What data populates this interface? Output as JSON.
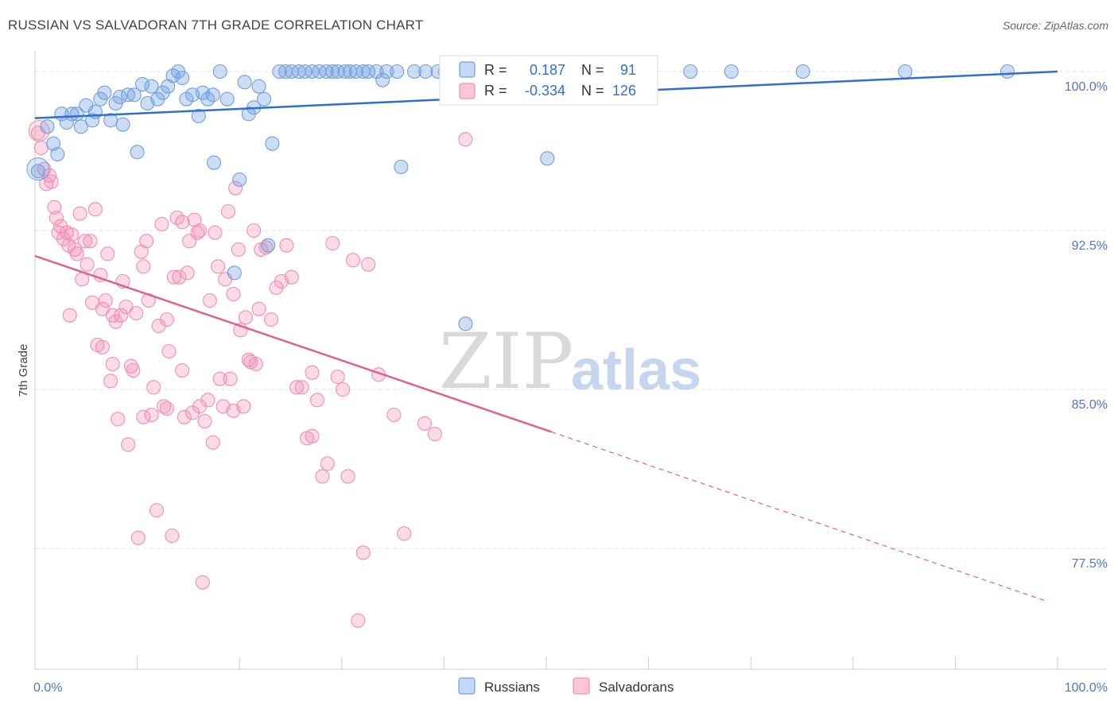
{
  "title": "RUSSIAN VS SALVADORAN 7TH GRADE CORRELATION CHART",
  "source": "Source: ZipAtlas.com",
  "watermark": {
    "zip": "ZIP",
    "atlas": "atlas"
  },
  "colors": {
    "russians": "#6f9fe0",
    "russians_line": "#2e6fd0",
    "salvadorans": "#f08fb3",
    "salvadorans_line": "#e0608f",
    "accent_text": "#2e6fd0",
    "grid": "#e4e4e4"
  },
  "legend": {
    "rows": [
      {
        "r_label": "R =",
        "r_value": "0.187",
        "n_label": "N =",
        "n_value": "91"
      },
      {
        "r_label": "R =",
        "r_value": "-0.334",
        "n_label": "N =",
        "n_value": "126"
      }
    ]
  },
  "chart_data": {
    "type": "scatter",
    "title": "RUSSIAN VS SALVADORAN 7TH GRADE CORRELATION CHART",
    "xlabel": "",
    "ylabel": "7th Grade",
    "xlim": [
      0,
      100
    ],
    "ylim": [
      71.8,
      100.9
    ],
    "x_tick_labels": [
      {
        "x": 0,
        "label": "0.0%"
      },
      {
        "x": 100,
        "label": "100.0%"
      }
    ],
    "y_ticks": [
      {
        "y": 77.5,
        "label": "77.5%"
      },
      {
        "y": 85.0,
        "label": "85.0%"
      },
      {
        "y": 92.5,
        "label": "92.5%"
      },
      {
        "y": 100.0,
        "label": "100.0%"
      }
    ],
    "grid": true,
    "legend_position": "top-center",
    "series": [
      {
        "name": "Russians",
        "r": 0.187,
        "n": 91,
        "trend": {
          "x": [
            0,
            100
          ],
          "y": [
            97.8,
            100.0
          ]
        },
        "points": [
          [
            0.3,
            95.3
          ],
          [
            1.2,
            97.4
          ],
          [
            1.8,
            96.6
          ],
          [
            2.2,
            96.1
          ],
          [
            2.6,
            98.0
          ],
          [
            3.1,
            97.6
          ],
          [
            3.6,
            98.0
          ],
          [
            4.1,
            98.0
          ],
          [
            4.5,
            97.4
          ],
          [
            5.0,
            98.4
          ],
          [
            5.6,
            97.7
          ],
          [
            5.9,
            98.1
          ],
          [
            6.4,
            98.7
          ],
          [
            6.8,
            99.0
          ],
          [
            7.4,
            97.7
          ],
          [
            7.9,
            98.5
          ],
          [
            8.3,
            98.8
          ],
          [
            8.6,
            97.5
          ],
          [
            9.1,
            98.9
          ],
          [
            9.7,
            98.9
          ],
          [
            10.0,
            96.2
          ],
          [
            10.5,
            99.4
          ],
          [
            11.0,
            98.5
          ],
          [
            11.4,
            99.3
          ],
          [
            12.0,
            98.7
          ],
          [
            12.5,
            99.0
          ],
          [
            13.0,
            99.3
          ],
          [
            13.5,
            99.8
          ],
          [
            14.0,
            100.0
          ],
          [
            14.4,
            99.7
          ],
          [
            14.8,
            98.7
          ],
          [
            15.4,
            98.9
          ],
          [
            16.0,
            97.9
          ],
          [
            16.4,
            99.0
          ],
          [
            16.9,
            98.7
          ],
          [
            17.4,
            98.9
          ],
          [
            17.5,
            95.7
          ],
          [
            18.1,
            100.0
          ],
          [
            18.8,
            98.7
          ],
          [
            19.5,
            90.5
          ],
          [
            20.0,
            94.9
          ],
          [
            20.5,
            99.5
          ],
          [
            20.9,
            98.0
          ],
          [
            21.4,
            98.3
          ],
          [
            21.9,
            99.3
          ],
          [
            22.4,
            98.7
          ],
          [
            22.8,
            91.8
          ],
          [
            23.2,
            96.6
          ],
          [
            23.9,
            100.0
          ],
          [
            24.5,
            100.0
          ],
          [
            25.1,
            100.0
          ],
          [
            25.8,
            100.0
          ],
          [
            26.4,
            100.0
          ],
          [
            27.1,
            100.0
          ],
          [
            27.8,
            100.0
          ],
          [
            28.5,
            100.0
          ],
          [
            29.1,
            100.0
          ],
          [
            29.6,
            100.0
          ],
          [
            30.3,
            100.0
          ],
          [
            30.8,
            100.0
          ],
          [
            31.4,
            100.0
          ],
          [
            32.1,
            100.0
          ],
          [
            32.6,
            100.0
          ],
          [
            33.4,
            100.0
          ],
          [
            34.0,
            99.6
          ],
          [
            34.4,
            100.0
          ],
          [
            35.4,
            100.0
          ],
          [
            35.8,
            95.5
          ],
          [
            37.1,
            100.0
          ],
          [
            38.2,
            100.0
          ],
          [
            39.4,
            100.0
          ],
          [
            40.5,
            100.0
          ],
          [
            41.6,
            100.0
          ],
          [
            42.1,
            88.1
          ],
          [
            43.4,
            100.0
          ],
          [
            44.1,
            100.0
          ],
          [
            45.6,
            100.0
          ],
          [
            46.1,
            100.0
          ],
          [
            47.6,
            100.0
          ],
          [
            49.6,
            100.0
          ],
          [
            50.1,
            95.9
          ],
          [
            51.3,
            100.0
          ],
          [
            53.1,
            100.0
          ],
          [
            55.6,
            100.0
          ],
          [
            57.6,
            100.0
          ],
          [
            60.1,
            100.0
          ],
          [
            64.1,
            100.0
          ],
          [
            68.1,
            100.0
          ],
          [
            75.1,
            100.0
          ],
          [
            85.1,
            100.0
          ],
          [
            95.1,
            100.0
          ]
        ]
      },
      {
        "name": "Salvadorans",
        "r": -0.334,
        "n": 126,
        "trend": {
          "x": [
            0,
            50.5
          ],
          "y": [
            91.3,
            83.0
          ],
          "dashed_to": {
            "x": 99,
            "y": 75.0
          }
        },
        "points": [
          [
            0.3,
            97.1
          ],
          [
            0.6,
            96.4
          ],
          [
            0.9,
            95.4
          ],
          [
            1.1,
            94.7
          ],
          [
            1.4,
            95.1
          ],
          [
            1.6,
            94.8
          ],
          [
            1.9,
            93.6
          ],
          [
            2.1,
            93.1
          ],
          [
            2.3,
            92.4
          ],
          [
            2.5,
            92.7
          ],
          [
            2.8,
            92.1
          ],
          [
            3.1,
            92.4
          ],
          [
            3.3,
            91.8
          ],
          [
            3.6,
            92.3
          ],
          [
            3.9,
            91.6
          ],
          [
            4.1,
            91.4
          ],
          [
            4.4,
            93.3
          ],
          [
            4.6,
            90.2
          ],
          [
            4.9,
            92.0
          ],
          [
            5.1,
            90.9
          ],
          [
            5.4,
            92.0
          ],
          [
            5.6,
            89.1
          ],
          [
            5.9,
            93.5
          ],
          [
            6.1,
            87.1
          ],
          [
            6.4,
            90.4
          ],
          [
            6.6,
            88.8
          ],
          [
            6.9,
            89.2
          ],
          [
            7.1,
            91.4
          ],
          [
            7.4,
            85.4
          ],
          [
            7.6,
            88.5
          ],
          [
            7.9,
            88.2
          ],
          [
            8.1,
            83.6
          ],
          [
            8.4,
            88.5
          ],
          [
            8.6,
            90.1
          ],
          [
            8.9,
            88.9
          ],
          [
            9.1,
            82.4
          ],
          [
            9.4,
            86.1
          ],
          [
            9.6,
            85.9
          ],
          [
            9.9,
            88.6
          ],
          [
            10.1,
            78.0
          ],
          [
            10.4,
            91.5
          ],
          [
            10.6,
            90.8
          ],
          [
            10.9,
            92.0
          ],
          [
            11.1,
            89.2
          ],
          [
            11.4,
            83.8
          ],
          [
            11.6,
            85.1
          ],
          [
            11.9,
            79.3
          ],
          [
            12.1,
            88.0
          ],
          [
            12.4,
            92.8
          ],
          [
            12.6,
            84.2
          ],
          [
            12.9,
            88.3
          ],
          [
            13.1,
            86.8
          ],
          [
            13.4,
            78.1
          ],
          [
            13.6,
            90.3
          ],
          [
            13.9,
            93.1
          ],
          [
            14.1,
            90.3
          ],
          [
            14.4,
            92.9
          ],
          [
            14.6,
            83.7
          ],
          [
            14.9,
            90.5
          ],
          [
            15.1,
            92.0
          ],
          [
            15.4,
            83.9
          ],
          [
            15.6,
            93.0
          ],
          [
            15.9,
            92.4
          ],
          [
            16.1,
            92.5
          ],
          [
            16.4,
            75.9
          ],
          [
            16.6,
            83.5
          ],
          [
            16.9,
            84.5
          ],
          [
            17.1,
            89.2
          ],
          [
            17.4,
            82.5
          ],
          [
            17.6,
            92.4
          ],
          [
            17.9,
            90.8
          ],
          [
            18.1,
            85.5
          ],
          [
            18.4,
            84.2
          ],
          [
            18.6,
            90.2
          ],
          [
            18.9,
            93.4
          ],
          [
            19.1,
            85.5
          ],
          [
            19.4,
            89.5
          ],
          [
            19.6,
            94.5
          ],
          [
            19.9,
            91.6
          ],
          [
            20.1,
            87.8
          ],
          [
            20.4,
            84.2
          ],
          [
            20.6,
            88.4
          ],
          [
            20.9,
            86.4
          ],
          [
            21.1,
            86.3
          ],
          [
            21.4,
            92.5
          ],
          [
            21.6,
            86.2
          ],
          [
            21.9,
            88.8
          ],
          [
            22.1,
            91.6
          ],
          [
            22.6,
            91.7
          ],
          [
            23.1,
            88.3
          ],
          [
            23.6,
            89.8
          ],
          [
            24.1,
            90.1
          ],
          [
            24.6,
            91.8
          ],
          [
            25.1,
            90.3
          ],
          [
            25.6,
            85.1
          ],
          [
            26.1,
            85.1
          ],
          [
            26.6,
            82.7
          ],
          [
            27.1,
            82.8
          ],
          [
            27.1,
            85.8
          ],
          [
            27.6,
            84.5
          ],
          [
            28.1,
            80.9
          ],
          [
            28.6,
            81.5
          ],
          [
            29.1,
            91.9
          ],
          [
            29.6,
            85.6
          ],
          [
            30.1,
            85.0
          ],
          [
            30.6,
            80.9
          ],
          [
            31.1,
            91.1
          ],
          [
            31.6,
            74.1
          ],
          [
            32.1,
            77.3
          ],
          [
            32.6,
            90.9
          ],
          [
            33.6,
            85.7
          ],
          [
            35.1,
            83.8
          ],
          [
            36.1,
            78.2
          ],
          [
            38.1,
            83.4
          ],
          [
            39.1,
            82.9
          ],
          [
            40.1,
            100.0
          ],
          [
            42.1,
            96.8
          ],
          [
            43.1,
            100.0
          ],
          [
            10.6,
            83.7
          ],
          [
            6.6,
            87.0
          ],
          [
            3.4,
            88.5
          ],
          [
            7.6,
            86.2
          ],
          [
            12.9,
            84.1
          ],
          [
            16.1,
            84.2
          ],
          [
            19.4,
            84.0
          ],
          [
            14.4,
            85.9
          ]
        ]
      }
    ]
  }
}
